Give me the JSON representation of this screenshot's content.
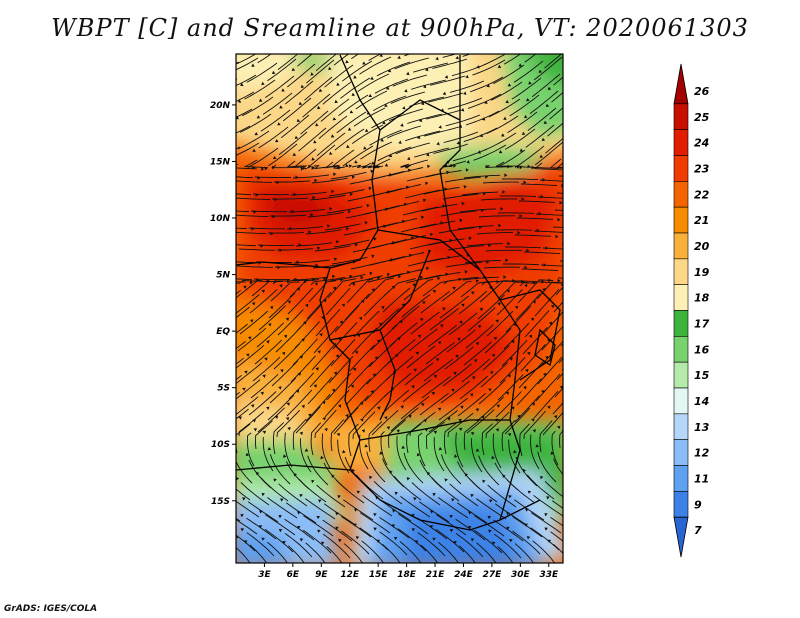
{
  "title": "WBPT [C] and Sreamline at 900hPa, VT: 2020061303",
  "credit": "GrADS: IGES/COLA",
  "map": {
    "field": "WBPT",
    "lon_range": [
      0,
      34.5
    ],
    "lat_range": [
      -20.5,
      24.5
    ],
    "lat_ticks": [
      {
        "value": 20,
        "label": "20N"
      },
      {
        "value": 15,
        "label": "15N"
      },
      {
        "value": 10,
        "label": "10N"
      },
      {
        "value": 5,
        "label": "5N"
      },
      {
        "value": 0,
        "label": "EQ"
      },
      {
        "value": -5,
        "label": "5S"
      },
      {
        "value": -10,
        "label": "10S"
      },
      {
        "value": -15,
        "label": "15S"
      }
    ],
    "lon_ticks": [
      {
        "value": 3,
        "label": "3E"
      },
      {
        "value": 6,
        "label": "6E"
      },
      {
        "value": 9,
        "label": "9E"
      },
      {
        "value": 12,
        "label": "12E"
      },
      {
        "value": 15,
        "label": "15E"
      },
      {
        "value": 18,
        "label": "18E"
      },
      {
        "value": 21,
        "label": "21E"
      },
      {
        "value": 24,
        "label": "24E"
      },
      {
        "value": 27,
        "label": "27E"
      },
      {
        "value": 30,
        "label": "30E"
      },
      {
        "value": 33,
        "label": "33E"
      }
    ]
  },
  "colorbar": {
    "levels": [
      {
        "label": "26",
        "color": "#a50000"
      },
      {
        "label": "25",
        "color": "#c80f00"
      },
      {
        "label": "24",
        "color": "#e11e00"
      },
      {
        "label": "23",
        "color": "#f03c00"
      },
      {
        "label": "22",
        "color": "#f46400"
      },
      {
        "label": "21",
        "color": "#f78c00"
      },
      {
        "label": "20",
        "color": "#f9b13c"
      },
      {
        "label": "19",
        "color": "#fbd787"
      },
      {
        "label": "18",
        "color": "#fdf0b4"
      },
      {
        "label": "17",
        "color": "#3cb43c"
      },
      {
        "label": "16",
        "color": "#78d26e"
      },
      {
        "label": "15",
        "color": "#b4eaaa"
      },
      {
        "label": "14",
        "color": "#e2f6f4"
      },
      {
        "label": "13",
        "color": "#b4d6f8"
      },
      {
        "label": "12",
        "color": "#8cbcf5"
      },
      {
        "label": "11",
        "color": "#5fa0ef"
      },
      {
        "label": "9",
        "color": "#3c82e6"
      },
      {
        "label": "7",
        "color": "#2864d2"
      }
    ]
  }
}
